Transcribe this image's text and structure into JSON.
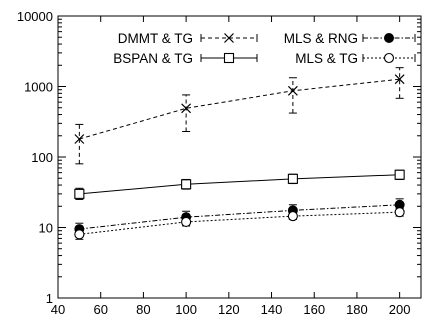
{
  "chart_data": {
    "type": "line",
    "title": "",
    "xlabel": "",
    "ylabel": "",
    "x": [
      50,
      100,
      150,
      200
    ],
    "xlim": [
      40,
      210
    ],
    "ylim": [
      1,
      10000
    ],
    "yscale": "log",
    "xticks": [
      "40",
      "60",
      "80",
      "100",
      "120",
      "140",
      "160",
      "180",
      "200"
    ],
    "yticks": [
      "1",
      "10",
      "100",
      "1000",
      "10000"
    ],
    "grid": false,
    "legend_position": "top",
    "series": [
      {
        "name": "DMMT & TG",
        "values": [
          180,
          490,
          870,
          1270
        ],
        "err_low": [
          80,
          230,
          420,
          680
        ],
        "err_high": [
          290,
          760,
          1330,
          1850
        ],
        "marker": "x",
        "dash": "dashed"
      },
      {
        "name": "BSPAN & TG",
        "values": [
          30,
          41,
          49,
          56
        ],
        "err_low": [
          25,
          35,
          42,
          48
        ],
        "err_high": [
          36,
          48,
          57,
          65
        ],
        "marker": "square-open",
        "dash": "solid"
      },
      {
        "name": "MLS & RNG",
        "values": [
          9.5,
          14,
          17.5,
          21
        ],
        "err_low": [
          8.2,
          12.5,
          15.5,
          18.5
        ],
        "err_high": [
          11.5,
          17,
          21,
          25.5
        ],
        "marker": "circle-filled",
        "dash": "dashdot"
      },
      {
        "name": "MLS & TG",
        "values": [
          8,
          12,
          14.5,
          16.5
        ],
        "err_low": [
          6.8,
          10.5,
          13,
          14.5
        ],
        "err_high": [
          9.5,
          13.5,
          16.5,
          19
        ],
        "marker": "circle-open",
        "dash": "dotted"
      }
    ]
  }
}
